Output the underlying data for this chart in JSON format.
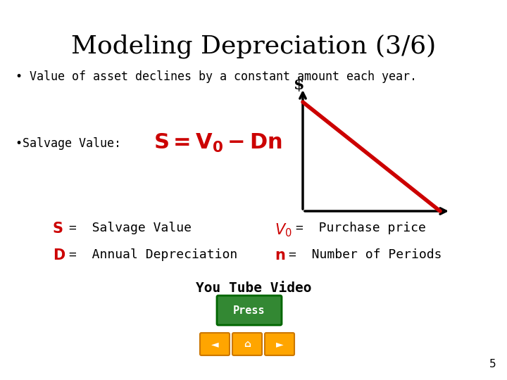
{
  "title": "Modeling Depreciation (3/6)",
  "title_fontsize": 26,
  "bg_color": "#ffffff",
  "text_color": "#000000",
  "red_color": "#cc0000",
  "bullet1": "• Value of asset declines by a constant amount each year.",
  "bullet2_prefix": "•Salvage Value: ",
  "youtube_text": "You Tube Video",
  "press_button_text": "Press",
  "press_button_color": "#338833",
  "press_button_text_color": "#ffffff",
  "nav_color": "#FFA500",
  "nav_border_color": "#CC7700"
}
